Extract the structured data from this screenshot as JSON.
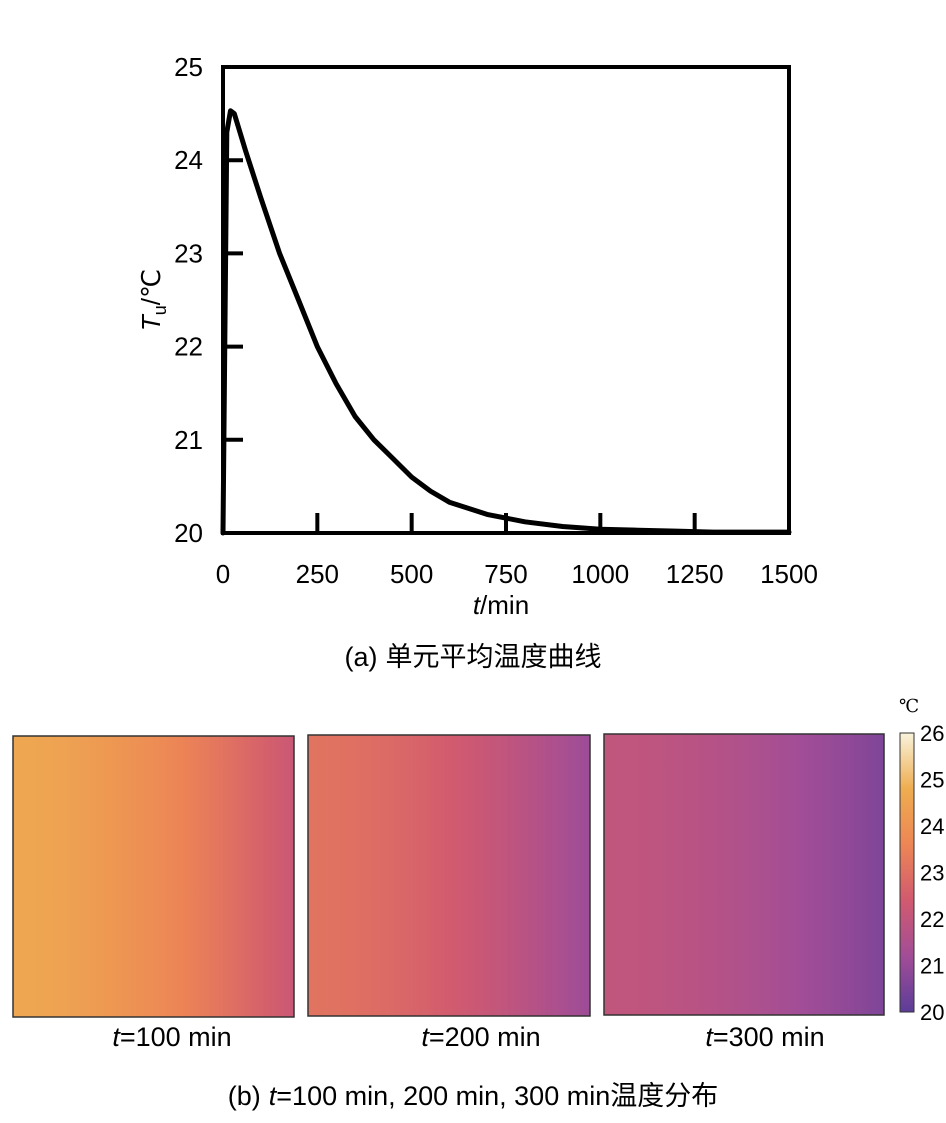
{
  "chart_data": [
    {
      "type": "line",
      "title": "",
      "xlabel": {
        "var": "t",
        "unit": "/min"
      },
      "ylabel": {
        "var": "T",
        "sub": "u",
        "unit": "/℃"
      },
      "xlim": [
        0,
        1500
      ],
      "ylim": [
        20,
        25
      ],
      "xticks": [
        "0",
        "250",
        "500",
        "750",
        "1000",
        "1250",
        "1500"
      ],
      "yticks": [
        "20",
        "21",
        "22",
        "23",
        "24",
        "25"
      ],
      "grid": false,
      "series": [
        {
          "x": [
            0,
            10,
            20,
            30,
            60,
            100,
            150,
            200,
            250,
            300,
            350,
            400,
            450,
            500,
            550,
            600,
            700,
            800,
            900,
            1000,
            1100,
            1200,
            1300,
            1400,
            1500
          ],
          "y": [
            20.0,
            24.3,
            24.53,
            24.5,
            24.1,
            23.6,
            23.0,
            22.5,
            22.0,
            21.6,
            21.25,
            21.0,
            20.8,
            20.6,
            20.45,
            20.33,
            20.2,
            20.12,
            20.07,
            20.04,
            20.03,
            20.02,
            20.01,
            20.01,
            20.01
          ]
        }
      ],
      "caption": {
        "label": "(a)",
        "text": "单元平均温度曲线"
      }
    },
    {
      "type": "heatmap",
      "panels": [
        {
          "t_label": "t",
          "value_label": "=100 min",
          "left_value": 24.6,
          "right_value": 22.2
        },
        {
          "t_label": "t",
          "value_label": "=200 min",
          "left_value": 23.1,
          "right_value": 21.1
        },
        {
          "t_label": "t",
          "value_label": "=300 min",
          "left_value": 22.0,
          "right_value": 20.6
        }
      ],
      "colorbar": {
        "unit": "℃",
        "min": 20,
        "max": 26,
        "ticks": [
          "26",
          "25",
          "24",
          "23",
          "22",
          "21",
          "20"
        ],
        "colors": [
          "#5c3d98",
          "#a24d97",
          "#d15a6f",
          "#ed8655",
          "#eead50",
          "#f9f3dc"
        ]
      },
      "caption": {
        "label": "(b)",
        "t_label": "t",
        "text": "=100 min, 200 min, 300 min",
        "suffix": "温度分布"
      }
    }
  ]
}
